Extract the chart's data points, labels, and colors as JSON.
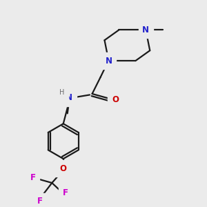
{
  "bg_color": "#ebebeb",
  "bond_color": "#1a1a1a",
  "bond_width": 1.6,
  "N_color": "#2222cc",
  "O_color": "#cc0000",
  "F_color": "#cc00cc",
  "H_color": "#6a6a6a",
  "font_size_atom": 8.5,
  "fig_size": [
    3.0,
    3.0
  ],
  "dpi": 100,
  "xlim": [
    0,
    10
  ],
  "ylim": [
    0,
    10
  ]
}
